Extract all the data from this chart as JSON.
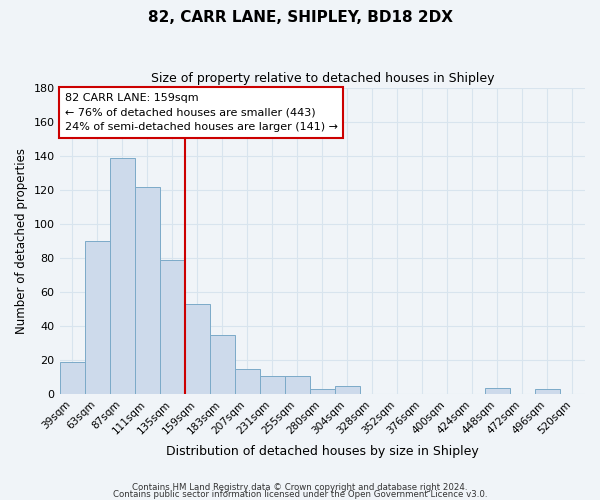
{
  "title": "82, CARR LANE, SHIPLEY, BD18 2DX",
  "subtitle": "Size of property relative to detached houses in Shipley",
  "xlabel": "Distribution of detached houses by size in Shipley",
  "ylabel": "Number of detached properties",
  "bar_labels": [
    "39sqm",
    "63sqm",
    "87sqm",
    "111sqm",
    "135sqm",
    "159sqm",
    "183sqm",
    "207sqm",
    "231sqm",
    "255sqm",
    "280sqm",
    "304sqm",
    "328sqm",
    "352sqm",
    "376sqm",
    "400sqm",
    "424sqm",
    "448sqm",
    "472sqm",
    "496sqm",
    "520sqm"
  ],
  "bar_values": [
    19,
    90,
    139,
    122,
    79,
    53,
    35,
    15,
    11,
    11,
    3,
    5,
    0,
    0,
    0,
    0,
    0,
    4,
    0,
    3,
    0
  ],
  "bar_color": "#cddaeb",
  "bar_edge_color": "#7baac8",
  "vline_color": "#cc0000",
  "ylim": [
    0,
    180
  ],
  "yticks": [
    0,
    20,
    40,
    60,
    80,
    100,
    120,
    140,
    160,
    180
  ],
  "annotation_title": "82 CARR LANE: 159sqm",
  "annotation_line1": "← 76% of detached houses are smaller (443)",
  "annotation_line2": "24% of semi-detached houses are larger (141) →",
  "annotation_box_color": "#ffffff",
  "annotation_box_edge_color": "#cc0000",
  "footnote1": "Contains HM Land Registry data © Crown copyright and database right 2024.",
  "footnote2": "Contains public sector information licensed under the Open Government Licence v3.0.",
  "background_color": "#f0f4f8",
  "grid_color": "#d8e4ee"
}
